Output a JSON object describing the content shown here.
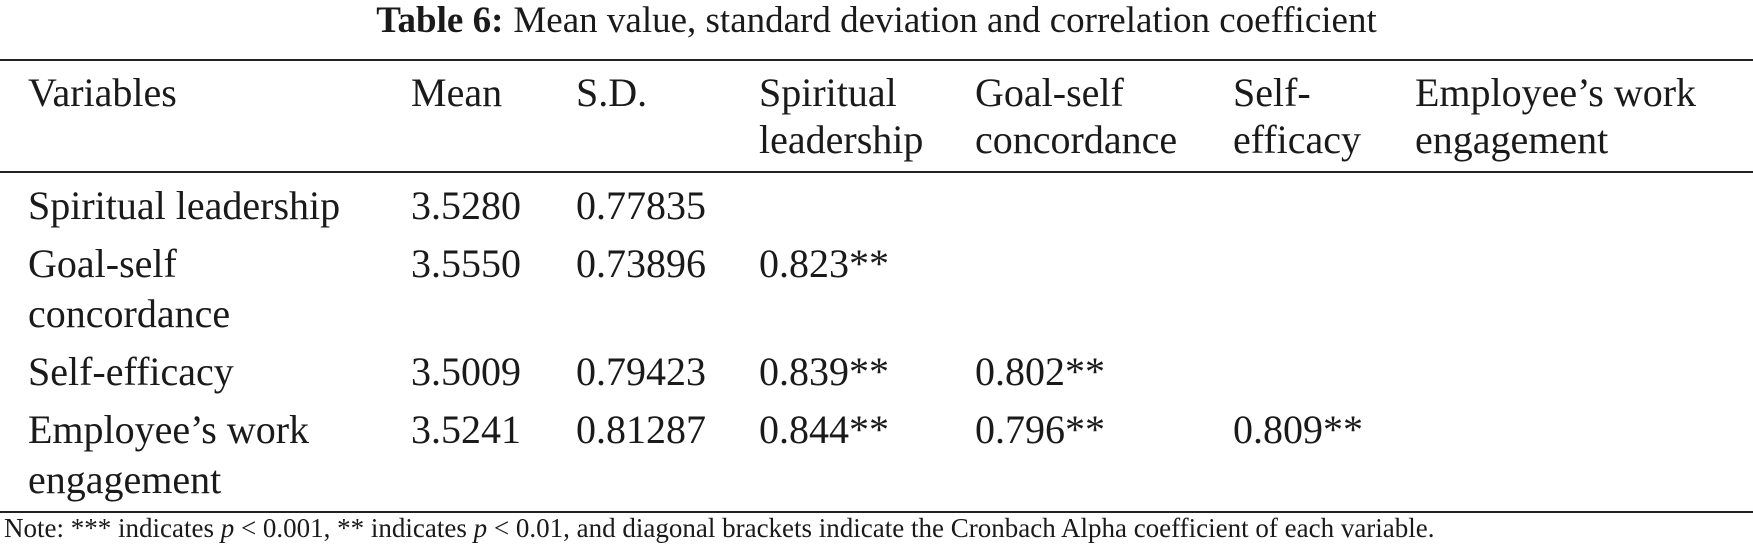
{
  "caption": {
    "label": "Table 6:",
    "text": "Mean value, standard deviation and correlation coefficient"
  },
  "table": {
    "columns": [
      "Variables",
      "Mean",
      "S.D.",
      "Spiritual leadership",
      "Goal-self concordance",
      "Self-efficacy",
      "Employee’s work engagement"
    ],
    "rows": [
      [
        "Spiritual leadership",
        "3.5280",
        "0.77835"
      ],
      [
        "Goal-self concordance",
        "3.5550",
        "0.73896",
        "0.823**"
      ],
      [
        "Self-efficacy",
        "3.5009",
        "0.79423",
        "0.839**",
        "0.802**"
      ],
      [
        "Employee’s work engagement",
        "3.5241",
        "0.81287",
        "0.844**",
        "0.796**",
        "0.809**"
      ]
    ]
  },
  "note": [
    "Note: *** indicates ",
    "p",
    " < 0.001, ** indicates ",
    "p",
    " < 0.01, and diagonal brackets indicate the Cronbach Alpha coefficient of each variable."
  ]
}
